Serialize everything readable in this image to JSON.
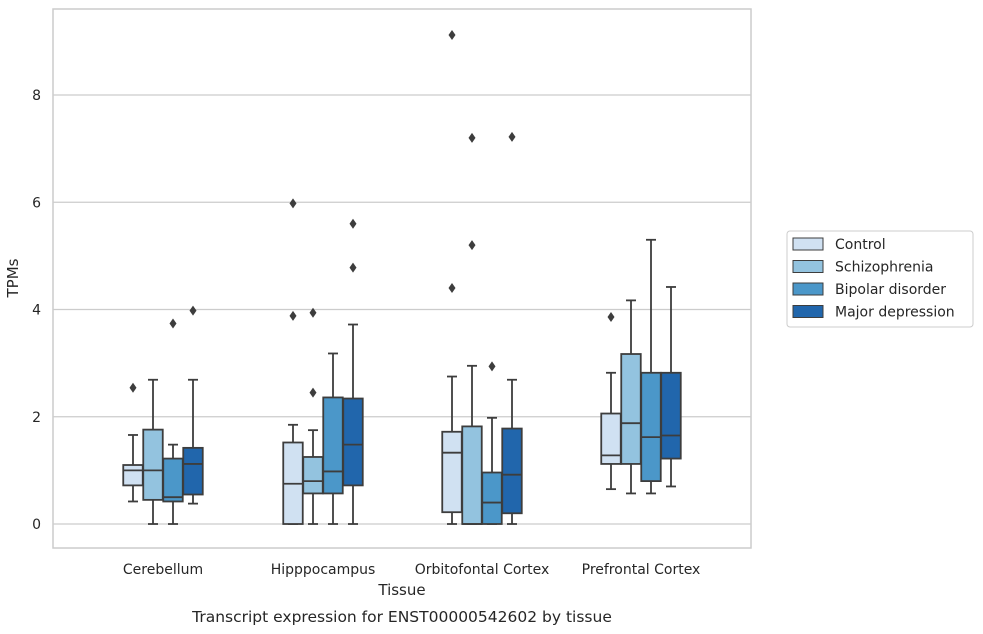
{
  "chart_data": {
    "type": "box",
    "xlabel": "Tissue",
    "ylabel": "TPMs",
    "caption": "Transcript expression for ENST00000542602 by tissue",
    "ylim": [
      -0.45,
      9.6
    ],
    "yticks": [
      0,
      2,
      4,
      6,
      8
    ],
    "grid": "horizontal",
    "legend_position": "right",
    "categories": [
      "Cerebellum",
      "Hipppocampus",
      "Orbitofontal Cortex",
      "Prefrontal Cortex"
    ],
    "series": [
      {
        "name": "Control",
        "color": "#d0e1f2"
      },
      {
        "name": "Schizophrenia",
        "color": "#93c3df"
      },
      {
        "name": "Bipolar disorder",
        "color": "#4b97c9"
      },
      {
        "name": "Major depression",
        "color": "#2166ac"
      }
    ],
    "boxes": [
      [
        {
          "whislo": 0.42,
          "q1": 0.72,
          "med": 1.0,
          "q3": 1.1,
          "whishi": 1.66,
          "fliers": [
            2.54
          ]
        },
        {
          "whislo": 0.0,
          "q1": 0.45,
          "med": 1.0,
          "q3": 1.76,
          "whishi": 2.69,
          "fliers": []
        },
        {
          "whislo": 0.0,
          "q1": 0.42,
          "med": 0.5,
          "q3": 1.22,
          "whishi": 1.48,
          "fliers": [
            3.74
          ]
        },
        {
          "whislo": 0.38,
          "q1": 0.55,
          "med": 1.12,
          "q3": 1.42,
          "whishi": 2.69,
          "fliers": [
            3.98
          ]
        }
      ],
      [
        {
          "whislo": 0.0,
          "q1": 0.0,
          "med": 0.75,
          "q3": 1.52,
          "whishi": 1.85,
          "fliers": [
            3.88,
            5.98
          ]
        },
        {
          "whislo": 0.0,
          "q1": 0.57,
          "med": 0.8,
          "q3": 1.25,
          "whishi": 1.75,
          "fliers": [
            2.45,
            3.94
          ]
        },
        {
          "whislo": 0.0,
          "q1": 0.57,
          "med": 0.98,
          "q3": 2.36,
          "whishi": 3.18,
          "fliers": []
        },
        {
          "whislo": 0.0,
          "q1": 0.72,
          "med": 1.48,
          "q3": 2.34,
          "whishi": 3.72,
          "fliers": [
            4.78,
            5.6
          ]
        }
      ],
      [
        {
          "whislo": 0.0,
          "q1": 0.22,
          "med": 1.33,
          "q3": 1.72,
          "whishi": 2.75,
          "fliers": [
            4.4,
            9.12
          ]
        },
        {
          "whislo": 0.0,
          "q1": 0.0,
          "med": 0.0,
          "q3": 1.82,
          "whishi": 2.95,
          "fliers": [
            5.2,
            7.2
          ]
        },
        {
          "whislo": 0.0,
          "q1": 0.0,
          "med": 0.4,
          "q3": 0.96,
          "whishi": 1.98,
          "fliers": [
            2.94
          ]
        },
        {
          "whislo": 0.0,
          "q1": 0.2,
          "med": 0.92,
          "q3": 1.78,
          "whishi": 2.69,
          "fliers": [
            7.22
          ]
        }
      ],
      [
        {
          "whislo": 0.65,
          "q1": 1.12,
          "med": 1.28,
          "q3": 2.06,
          "whishi": 2.82,
          "fliers": [
            3.86
          ]
        },
        {
          "whislo": 0.57,
          "q1": 1.12,
          "med": 1.88,
          "q3": 3.17,
          "whishi": 4.17,
          "fliers": []
        },
        {
          "whislo": 0.57,
          "q1": 0.8,
          "med": 1.62,
          "q3": 2.82,
          "whishi": 5.3,
          "fliers": []
        },
        {
          "whislo": 0.7,
          "q1": 1.22,
          "med": 1.65,
          "q3": 2.82,
          "whishi": 4.42,
          "fliers": []
        }
      ]
    ]
  }
}
